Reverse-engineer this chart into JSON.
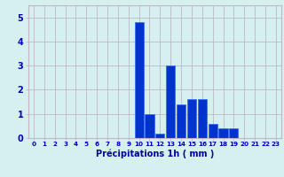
{
  "hours": [
    0,
    1,
    2,
    3,
    4,
    5,
    6,
    7,
    8,
    9,
    10,
    11,
    12,
    13,
    14,
    15,
    16,
    17,
    18,
    19,
    20,
    21,
    22,
    23
  ],
  "values": [
    0,
    0,
    0,
    0,
    0,
    0,
    0,
    0,
    0,
    0,
    4.8,
    1.0,
    0.2,
    3.0,
    1.4,
    1.6,
    1.6,
    0.6,
    0.4,
    0.4,
    0,
    0,
    0,
    0
  ],
  "bar_color": "#0033cc",
  "bar_edge_color": "#3366ff",
  "background_color": "#d6f0f0",
  "grid_color": "#c0b8c8",
  "xlabel": "Précipitations 1h ( mm )",
  "xlabel_color": "#0000aa",
  "tick_color": "#0000bb",
  "ylim": [
    0,
    5.5
  ],
  "yticks": [
    0,
    1,
    2,
    3,
    4,
    5
  ],
  "figsize": [
    3.2,
    2.0
  ],
  "dpi": 100
}
